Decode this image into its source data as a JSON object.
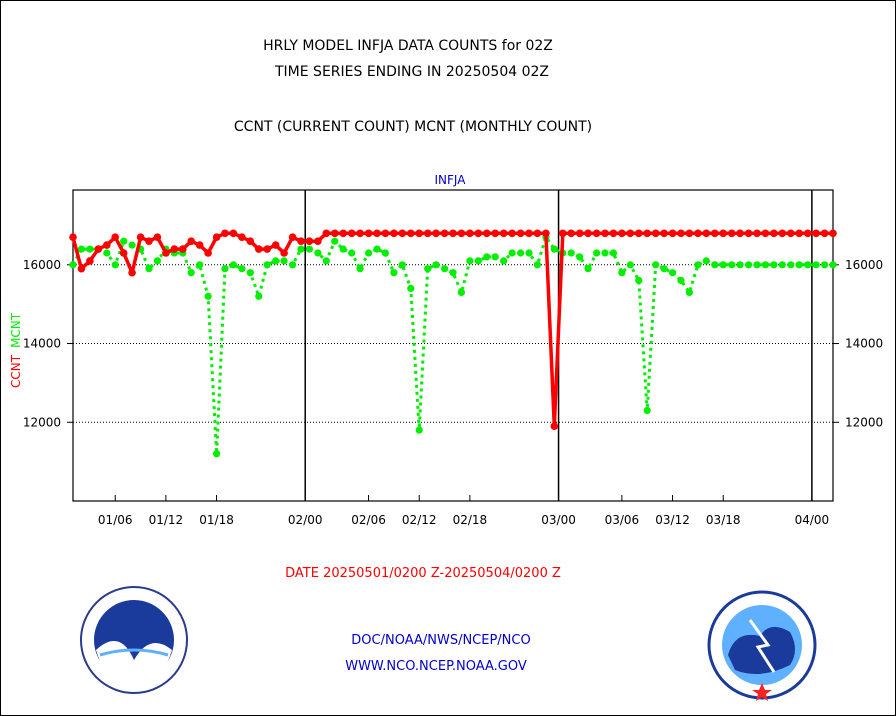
{
  "title_line1": "HRLY MODEL INFJA DATA COUNTS for 02Z",
  "title_line2": "TIME SERIES ENDING IN 20250504 02Z",
  "title_line3": "CCNT (CURRENT COUNT) MCNT (MONTHLY COUNT)",
  "panel_label": "INFJA",
  "date_range": "DATE 20250501/0200 Z-20250504/0200 Z",
  "footer_line1": "DOC/NOAA/NWS/NCEP/NCO",
  "footer_line2": "WWW.NCO.NCEP.NOAA.GOV",
  "logos": {
    "left": "noaa-logo",
    "right": "nws-logo"
  },
  "chart_data": {
    "type": "line",
    "title": "HRLY MODEL INFJA DATA COUNTS for 02Z",
    "ylabel_series": [
      "CCNT",
      "MCNT"
    ],
    "ylim": [
      10000,
      17900
    ],
    "yticks": [
      12000,
      14000,
      16000
    ],
    "ytick_labels": [
      "12000",
      "14000",
      "16000"
    ],
    "xlim": [
      0,
      90
    ],
    "x_ticks": [
      {
        "x": 5,
        "label": "01/06"
      },
      {
        "x": 11,
        "label": "01/12"
      },
      {
        "x": 17,
        "label": "01/18"
      },
      {
        "x": 27.5,
        "label": "02/00"
      },
      {
        "x": 35,
        "label": "02/06"
      },
      {
        "x": 41,
        "label": "02/12"
      },
      {
        "x": 47,
        "label": "02/18"
      },
      {
        "x": 57.5,
        "label": "03/00"
      },
      {
        "x": 65,
        "label": "03/06"
      },
      {
        "x": 71,
        "label": "03/12"
      },
      {
        "x": 77,
        "label": "03/18"
      },
      {
        "x": 87.5,
        "label": "04/00"
      }
    ],
    "day_dividers": [
      27.5,
      57.5,
      87.5
    ],
    "grid": true,
    "colors": {
      "ccnt": "#ff0000",
      "mcnt": "#00ee00"
    },
    "series": [
      {
        "name": "CCNT",
        "color": "#ff0000",
        "points": [
          [
            0,
            16700
          ],
          [
            1,
            15900
          ],
          [
            2,
            16100
          ],
          [
            3,
            16400
          ],
          [
            4,
            16500
          ],
          [
            5,
            16700
          ],
          [
            6,
            16300
          ],
          [
            7,
            15800
          ],
          [
            8,
            16700
          ],
          [
            9,
            16600
          ],
          [
            10,
            16700
          ],
          [
            11,
            16300
          ],
          [
            12,
            16400
          ],
          [
            13,
            16400
          ],
          [
            14,
            16600
          ],
          [
            15,
            16500
          ],
          [
            16,
            16300
          ],
          [
            17,
            16700
          ],
          [
            18,
            16800
          ],
          [
            19,
            16800
          ],
          [
            20,
            16700
          ],
          [
            21,
            16600
          ],
          [
            22,
            16400
          ],
          [
            23,
            16400
          ],
          [
            24,
            16500
          ],
          [
            25,
            16300
          ],
          [
            26,
            16700
          ],
          [
            27,
            16600
          ],
          [
            28,
            16600
          ],
          [
            29,
            16600
          ],
          [
            30,
            16800
          ],
          [
            31,
            16800
          ],
          [
            32,
            16800
          ],
          [
            33,
            16800
          ],
          [
            34,
            16800
          ],
          [
            35,
            16800
          ],
          [
            36,
            16800
          ],
          [
            37,
            16800
          ],
          [
            38,
            16800
          ],
          [
            39,
            16800
          ],
          [
            40,
            16800
          ],
          [
            41,
            16800
          ],
          [
            42,
            16800
          ],
          [
            43,
            16800
          ],
          [
            44,
            16800
          ],
          [
            45,
            16800
          ],
          [
            46,
            16800
          ],
          [
            47,
            16800
          ],
          [
            48,
            16800
          ],
          [
            49,
            16800
          ],
          [
            50,
            16800
          ],
          [
            51,
            16800
          ],
          [
            52,
            16800
          ],
          [
            53,
            16800
          ],
          [
            54,
            16800
          ],
          [
            55,
            16800
          ],
          [
            56,
            16800
          ],
          [
            57,
            11900
          ],
          [
            58,
            16800
          ],
          [
            59,
            16800
          ],
          [
            60,
            16800
          ],
          [
            61,
            16800
          ],
          [
            62,
            16800
          ],
          [
            63,
            16800
          ],
          [
            64,
            16800
          ],
          [
            65,
            16800
          ],
          [
            66,
            16800
          ],
          [
            67,
            16800
          ],
          [
            68,
            16800
          ],
          [
            69,
            16800
          ],
          [
            70,
            16800
          ],
          [
            71,
            16800
          ],
          [
            72,
            16800
          ],
          [
            73,
            16800
          ],
          [
            74,
            16800
          ],
          [
            75,
            16800
          ],
          [
            76,
            16800
          ],
          [
            77,
            16800
          ],
          [
            78,
            16800
          ],
          [
            79,
            16800
          ],
          [
            80,
            16800
          ],
          [
            81,
            16800
          ],
          [
            82,
            16800
          ],
          [
            83,
            16800
          ],
          [
            84,
            16800
          ],
          [
            85,
            16800
          ],
          [
            86,
            16800
          ],
          [
            87,
            16800
          ],
          [
            88,
            16800
          ],
          [
            89,
            16800
          ],
          [
            90,
            16800
          ]
        ]
      },
      {
        "name": "MCNT",
        "color": "#00ee00",
        "points": [
          [
            0,
            16000
          ],
          [
            1,
            16400
          ],
          [
            2,
            16400
          ],
          [
            3,
            16400
          ],
          [
            4,
            16300
          ],
          [
            5,
            16000
          ],
          [
            6,
            16600
          ],
          [
            7,
            16500
          ],
          [
            8,
            16400
          ],
          [
            9,
            15900
          ],
          [
            10,
            16100
          ],
          [
            11,
            16400
          ],
          [
            12,
            16300
          ],
          [
            13,
            16300
          ],
          [
            14,
            15800
          ],
          [
            15,
            16000
          ],
          [
            16,
            15200
          ],
          [
            17,
            11200
          ],
          [
            18,
            15900
          ],
          [
            19,
            16000
          ],
          [
            20,
            15900
          ],
          [
            21,
            15800
          ],
          [
            22,
            15200
          ],
          [
            23,
            16000
          ],
          [
            24,
            16100
          ],
          [
            25,
            16100
          ],
          [
            26,
            16000
          ],
          [
            27,
            16400
          ],
          [
            28,
            16400
          ],
          [
            29,
            16300
          ],
          [
            30,
            16100
          ],
          [
            31,
            16600
          ],
          [
            32,
            16400
          ],
          [
            33,
            16300
          ],
          [
            34,
            15900
          ],
          [
            35,
            16300
          ],
          [
            36,
            16400
          ],
          [
            37,
            16300
          ],
          [
            38,
            15800
          ],
          [
            39,
            16000
          ],
          [
            40,
            15400
          ],
          [
            41,
            11800
          ],
          [
            42,
            15900
          ],
          [
            43,
            16000
          ],
          [
            44,
            15900
          ],
          [
            45,
            15800
          ],
          [
            46,
            15300
          ],
          [
            47,
            16100
          ],
          [
            48,
            16100
          ],
          [
            49,
            16200
          ],
          [
            50,
            16200
          ],
          [
            51,
            16100
          ],
          [
            52,
            16300
          ],
          [
            53,
            16300
          ],
          [
            54,
            16300
          ],
          [
            55,
            16000
          ],
          [
            56,
            16700
          ],
          [
            57,
            16400
          ],
          [
            58,
            16300
          ],
          [
            59,
            16300
          ],
          [
            60,
            16200
          ],
          [
            61,
            15900
          ],
          [
            62,
            16300
          ],
          [
            63,
            16300
          ],
          [
            64,
            16300
          ],
          [
            65,
            15800
          ],
          [
            66,
            16000
          ],
          [
            67,
            15600
          ],
          [
            68,
            12300
          ],
          [
            69,
            16000
          ],
          [
            70,
            15900
          ],
          [
            71,
            15800
          ],
          [
            72,
            15600
          ],
          [
            73,
            15300
          ],
          [
            74,
            16000
          ],
          [
            75,
            16100
          ],
          [
            76,
            16000
          ],
          [
            77,
            16000
          ],
          [
            78,
            16000
          ],
          [
            79,
            16000
          ],
          [
            80,
            16000
          ],
          [
            81,
            16000
          ],
          [
            82,
            16000
          ],
          [
            83,
            16000
          ],
          [
            84,
            16000
          ],
          [
            85,
            16000
          ],
          [
            86,
            16000
          ],
          [
            87,
            16000
          ],
          [
            88,
            16000
          ],
          [
            89,
            16000
          ],
          [
            90,
            16000
          ]
        ]
      }
    ]
  }
}
